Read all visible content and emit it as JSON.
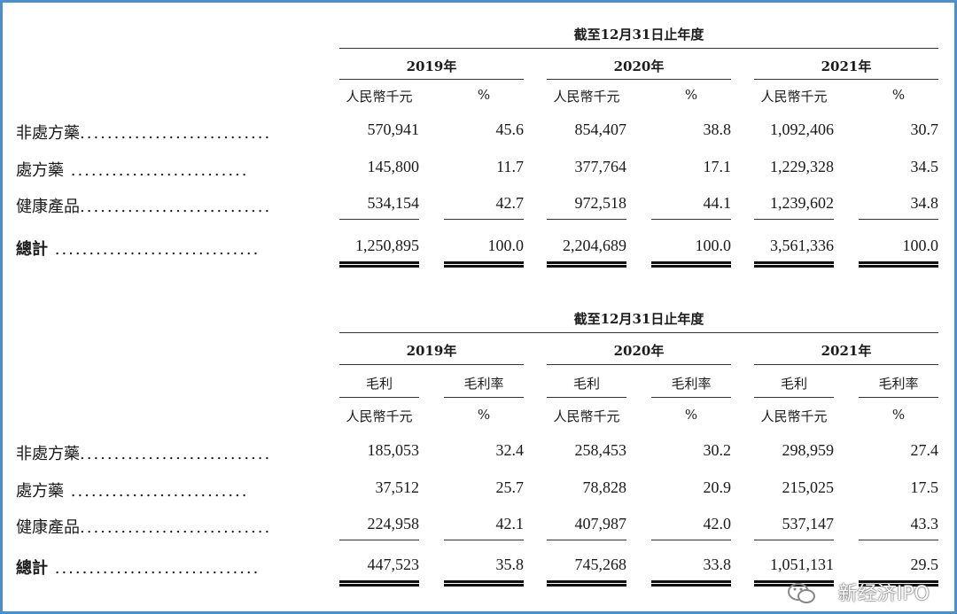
{
  "table1": {
    "period_header": "截至12月31日止年度",
    "years": [
      "2019年",
      "2020年",
      "2021年"
    ],
    "subheaders": [
      "人民幣千元",
      "%"
    ],
    "rows": [
      {
        "label": "非處方藥",
        "dots": "............................",
        "values": [
          "570,941",
          "45.6",
          "854,407",
          "38.8",
          "1,092,406",
          "30.7"
        ]
      },
      {
        "label": "處方藥",
        "dots": " ..........................",
        "values": [
          "145,800",
          "11.7",
          "377,764",
          "17.1",
          "1,229,328",
          "34.5"
        ]
      },
      {
        "label": "健康產品",
        "dots": "............................",
        "values": [
          "534,154",
          "42.7",
          "972,518",
          "44.1",
          "1,239,602",
          "34.8"
        ]
      }
    ],
    "total": {
      "label": "總計",
      "dots": " ..............................",
      "values": [
        "1,250,895",
        "100.0",
        "2,204,689",
        "100.0",
        "3,561,336",
        "100.0"
      ]
    }
  },
  "table2": {
    "period_header": "截至12月31日止年度",
    "years": [
      "2019年",
      "2020年",
      "2021年"
    ],
    "subheaders1": [
      "毛利",
      "毛利率"
    ],
    "subheaders2": [
      "人民幣千元",
      "%"
    ],
    "rows": [
      {
        "label": "非處方藥",
        "dots": "............................",
        "values": [
          "185,053",
          "32.4",
          "258,453",
          "30.2",
          "298,959",
          "27.4"
        ]
      },
      {
        "label": "處方藥",
        "dots": " ..........................",
        "values": [
          "37,512",
          "25.7",
          "78,828",
          "20.9",
          "215,025",
          "17.5"
        ]
      },
      {
        "label": "健康產品",
        "dots": "............................",
        "values": [
          "224,958",
          "42.1",
          "407,987",
          "42.0",
          "537,147",
          "43.3"
        ]
      }
    ],
    "total": {
      "label": "總計",
      "dots": " ..............................",
      "values": [
        "447,523",
        "35.8",
        "745,268",
        "33.8",
        "1,051,131",
        "29.5"
      ]
    }
  },
  "watermark": "新经济IPO",
  "frame_color": "#4a90d0"
}
